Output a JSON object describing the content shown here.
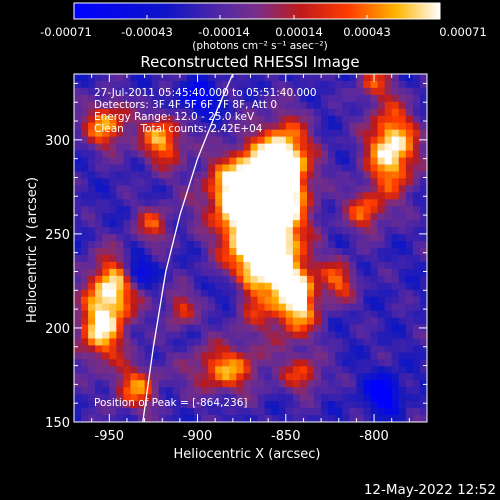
{
  "colorbar": {
    "ticks": [
      "-0.00071",
      "-0.00043",
      "-0.00014",
      "0.00014",
      "0.00043",
      "0.00071"
    ],
    "min": -0.00071,
    "max": 0.00071
  },
  "chart_data": {
    "type": "heatmap",
    "title": "Reconstructed RHESSI Image",
    "xlabel": "Heliocentric X (arcsec)",
    "ylabel": "Heliocentric Y (arcsec)",
    "xlim": [
      -970,
      -770
    ],
    "ylim": [
      150,
      335
    ],
    "xticks": [
      -950,
      -900,
      -850,
      -800
    ],
    "yticks": [
      150,
      200,
      250,
      300
    ],
    "colorbar_units": "(photons cm⁻² s⁻¹ asec⁻²)",
    "info_lines": [
      "27-Jul-2011 05:45:40.000 to 05:51:40.000",
      "Detectors: 3F 4F 5F 6F 7F 8F, Att 0",
      "Energy Range: 12.0 - 25.0 keV",
      "Clean     Total counts: 2.42E+04"
    ],
    "peak_text": "Position of Peak = [-864,236]",
    "peak_x": -864,
    "peak_y": 236,
    "limb_points": [
      [
        -931,
        150
      ],
      [
        -925,
        190
      ],
      [
        -918,
        230
      ],
      [
        -910,
        260
      ],
      [
        -900,
        290
      ],
      [
        -888,
        318
      ],
      [
        -880,
        335
      ]
    ],
    "blobs": [
      {
        "x": -863,
        "y": 248,
        "sx": 14,
        "sy": 26,
        "amp": 1.35
      },
      {
        "x": -870,
        "y": 272,
        "sx": 18,
        "sy": 14,
        "amp": 0.9
      },
      {
        "x": -843,
        "y": 215,
        "sx": 8,
        "sy": 14,
        "amp": 0.8
      },
      {
        "x": -850,
        "y": 292,
        "sx": 10,
        "sy": 14,
        "amp": 0.75
      },
      {
        "x": -790,
        "y": 295,
        "sx": 10,
        "sy": 16,
        "amp": 0.95
      },
      {
        "x": -948,
        "y": 222,
        "sx": 10,
        "sy": 12,
        "amp": 0.85
      },
      {
        "x": -955,
        "y": 198,
        "sx": 10,
        "sy": 12,
        "amp": 0.75
      },
      {
        "x": -952,
        "y": 308,
        "sx": 9,
        "sy": 9,
        "amp": 0.7
      },
      {
        "x": -920,
        "y": 300,
        "sx": 9,
        "sy": 10,
        "amp": 0.7
      },
      {
        "x": -885,
        "y": 178,
        "sx": 14,
        "sy": 9,
        "amp": 0.65
      },
      {
        "x": -820,
        "y": 225,
        "sx": 7,
        "sy": 8,
        "amp": 0.55
      },
      {
        "x": -805,
        "y": 262,
        "sx": 8,
        "sy": 8,
        "amp": 0.55
      },
      {
        "x": -935,
        "y": 168,
        "sx": 9,
        "sy": 9,
        "amp": 0.6
      },
      {
        "x": -910,
        "y": 210,
        "sx": 6,
        "sy": 7,
        "amp": 0.5
      },
      {
        "x": -925,
        "y": 255,
        "sx": 7,
        "sy": 7,
        "amp": 0.5
      },
      {
        "x": -840,
        "y": 175,
        "sx": 8,
        "sy": 7,
        "amp": 0.5
      },
      {
        "x": -800,
        "y": 330,
        "sx": 7,
        "sy": 6,
        "amp": 0.45
      },
      {
        "x": -795,
        "y": 165,
        "sx": 7,
        "sy": 7,
        "amp": -0.55
      },
      {
        "x": -935,
        "y": 230,
        "sx": 6,
        "sy": 6,
        "amp": -0.55
      },
      {
        "x": -880,
        "y": 220,
        "sx": 6,
        "sy": 6,
        "amp": -0.45
      },
      {
        "x": -900,
        "y": 322,
        "sx": 8,
        "sy": 6,
        "amp": -0.5
      }
    ]
  },
  "footer": {
    "timestamp": "12-May-2022 12:52"
  }
}
